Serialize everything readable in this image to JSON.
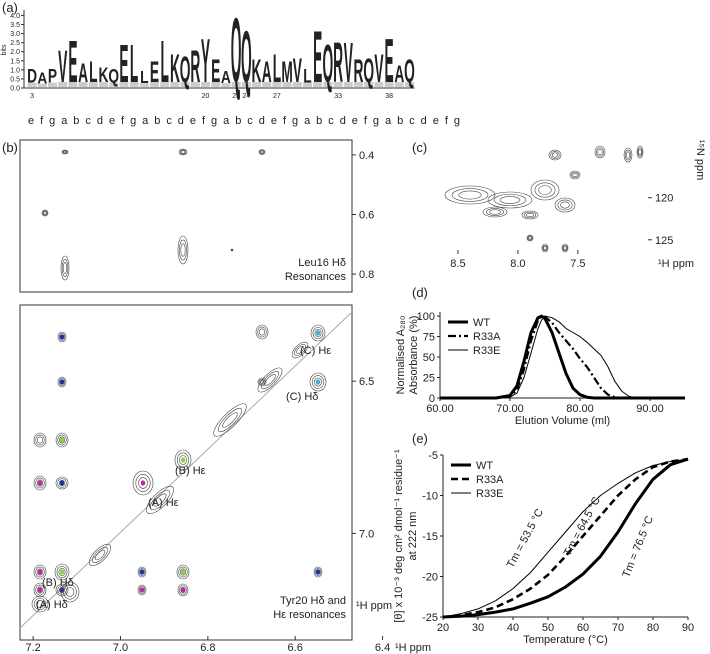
{
  "panels": {
    "a": {
      "label": "(a)",
      "ylabel": "bits",
      "ylim": [
        0,
        4.3
      ],
      "yticks": [
        {
          "value": 0,
          "label": "0.0"
        },
        0.5,
        {
          "value": 1,
          "label": "1.0"
        },
        1.5,
        {
          "value": 2,
          "label": "2.0"
        },
        2.5,
        {
          "value": 3,
          "label": "3.0"
        },
        3.5,
        {
          "value": 4,
          "label": "4.0"
        }
      ],
      "residues": [
        "D",
        "A",
        "P",
        "V",
        "E",
        "A",
        "L",
        "K",
        "Q",
        "E",
        "L",
        "L",
        "E",
        "L",
        "K",
        "Q",
        "R",
        "Y",
        "E",
        "A",
        "Q",
        "Q",
        "K",
        "A",
        "L",
        "M",
        "V",
        "L",
        "E",
        "Q",
        "R",
        "V",
        "R",
        "Q",
        "V",
        "E",
        "A",
        "Q"
      ],
      "heights": [
        1,
        0.8,
        1,
        2,
        2.5,
        1.3,
        1.4,
        1.1,
        1,
        2.3,
        2.3,
        0.9,
        1.4,
        2.5,
        1.8,
        1.7,
        2,
        2.6,
        1.5,
        0.9,
        3.7,
        3,
        1.5,
        1.4,
        1.8,
        1.4,
        1.6,
        1,
        3,
        2.3,
        2.4,
        2.4,
        1.5,
        1.6,
        1.8,
        2.6,
        1.2,
        1.5
      ],
      "positions": [
        3,
        20,
        23,
        24,
        27,
        33,
        38
      ],
      "heptad": "efgabcdefgabcdefgabcdefgabcdefgabcdefg",
      "residue_colors": {
        "D": "#c8102e",
        "E": "#c8102e",
        "K": "#1f3a93",
        "R": "#1f3a93",
        "Q": "#7b2d8e",
        "Y": "#2e8b57",
        "A": "#111111",
        "L": "#111111",
        "V": "#111111",
        "M": "#111111",
        "P": "#111111"
      }
    },
    "b": {
      "label": "(b)",
      "top": {
        "ylim": [
          0.35,
          0.86
        ],
        "yticks": [
          0.4,
          0.6,
          0.8
        ],
        "caption": [
          "Leu16 Hδ",
          "Resonances"
        ]
      },
      "bottom": {
        "xlim": [
          7.23,
          6.47
        ],
        "ylim": [
          6.25,
          7.35
        ],
        "xticks": [
          7.2,
          {
            "value": 7,
            "label": "7.0"
          },
          6.8,
          6.6,
          6.4
        ],
        "yticks": [
          6.5,
          {
            "value": 7,
            "label": "7.0"
          }
        ],
        "xlabel": "¹H ppm",
        "ylabel": "¹H ppm",
        "peak_labels": [
          "(C) Hε",
          "(C) Hδ",
          "(B) Hε",
          "(A) Hε",
          "(B) Hδ",
          "(A) Hδ"
        ],
        "caption": [
          "Tyr20 Hδ and",
          "Hε resonances"
        ]
      }
    },
    "c": {
      "label": "(c)",
      "xlim": [
        8.9,
        6.94
      ],
      "ylim": [
        112.9,
        128
      ],
      "xticks": [
        8.5,
        {
          "value": 8,
          "label": "8.0"
        },
        7.5
      ],
      "yticks": [
        120,
        125
      ],
      "xlabel": "¹H ppm",
      "ylabel": "¹⁵N ppm"
    }
  },
  "chart_data": [
    {
      "type": "line",
      "label": "(d)",
      "xlabel": "Elution Volume (ml)",
      "ylabel": [
        "Normalised A₂₈₀",
        "Absorbance (%)"
      ],
      "x": [
        60,
        68,
        70,
        71,
        72,
        73,
        74,
        74.5,
        75,
        76,
        77,
        78,
        79,
        80,
        81,
        82,
        83,
        84,
        85,
        86,
        87,
        88,
        95
      ],
      "series": [
        {
          "name": "WT",
          "color": "#000000",
          "width": 3,
          "dash": "solid",
          "values": [
            0,
            0,
            3,
            15,
            45,
            80,
            98,
            100,
            97,
            80,
            55,
            30,
            12,
            4,
            1,
            0,
            0,
            0,
            0,
            0,
            0,
            0,
            0
          ]
        },
        {
          "name": "R33A",
          "color": "#000000",
          "width": 2.2,
          "dash": "dashdot",
          "values": [
            0,
            0,
            2,
            10,
            35,
            70,
            95,
            100,
            99,
            92,
            80,
            70,
            60,
            48,
            38,
            25,
            12,
            4,
            1,
            0,
            0,
            0,
            0
          ]
        },
        {
          "name": "R33E",
          "color": "#000000",
          "width": 1,
          "dash": "solid",
          "values": [
            0,
            0,
            1,
            6,
            25,
            55,
            85,
            95,
            100,
            98,
            93,
            85,
            80,
            75,
            68,
            60,
            52,
            38,
            20,
            8,
            2,
            0,
            0
          ]
        }
      ],
      "xlim": [
        60,
        95
      ],
      "xticks": [
        {
          "value": 60,
          "label": "60.00"
        },
        {
          "value": 70,
          "label": "70.00"
        },
        {
          "value": 80,
          "label": "80.00"
        },
        {
          "value": 90,
          "label": "90.00"
        }
      ],
      "ylim": [
        0,
        105
      ],
      "yticks": [
        0,
        25,
        50,
        75,
        100
      ],
      "legend": "upper-left"
    },
    {
      "type": "line",
      "label": "(e)",
      "xlabel": "Temperature (°C)",
      "ylabel": [
        "[θ] x 10⁻³ deg cm² dmol⁻¹ residue⁻¹",
        "at 222 nm"
      ],
      "x": [
        20,
        25,
        30,
        35,
        40,
        45,
        50,
        55,
        60,
        65,
        70,
        75,
        80,
        85,
        90
      ],
      "series": [
        {
          "name": "WT",
          "color": "#000000",
          "width": 3,
          "dash": "solid",
          "values": [
            -25,
            -24.9,
            -24.7,
            -24.4,
            -24,
            -23.3,
            -22.5,
            -21.3,
            -19.7,
            -17.5,
            -14.5,
            -11,
            -8,
            -6.2,
            -5.5
          ]
        },
        {
          "name": "R33A",
          "color": "#000000",
          "width": 2.6,
          "dash": "dashed",
          "values": [
            -25,
            -24.8,
            -24.4,
            -23.8,
            -22.8,
            -21.5,
            -19.8,
            -17.5,
            -15,
            -12.5,
            -10,
            -8,
            -6.5,
            -5.8,
            -5.5
          ]
        },
        {
          "name": "R33E",
          "color": "#000000",
          "width": 1,
          "dash": "solid",
          "values": [
            -25,
            -24.6,
            -24,
            -23,
            -21.5,
            -19.5,
            -17,
            -14.5,
            -12,
            -10,
            -8.5,
            -7.2,
            -6.3,
            -5.8,
            -5.5
          ]
        }
      ],
      "annotations": [
        "Tm = 53.5 °C",
        "Tm = 64.5 °C",
        "Tm = 76.5 °C"
      ],
      "xlim": [
        20,
        90
      ],
      "xticks": [
        20,
        30,
        40,
        50,
        60,
        70,
        80,
        90
      ],
      "ylim": [
        -25,
        -5
      ],
      "yticks": [
        -25,
        -20,
        -15,
        -10,
        -5
      ],
      "legend": "upper-left"
    }
  ]
}
